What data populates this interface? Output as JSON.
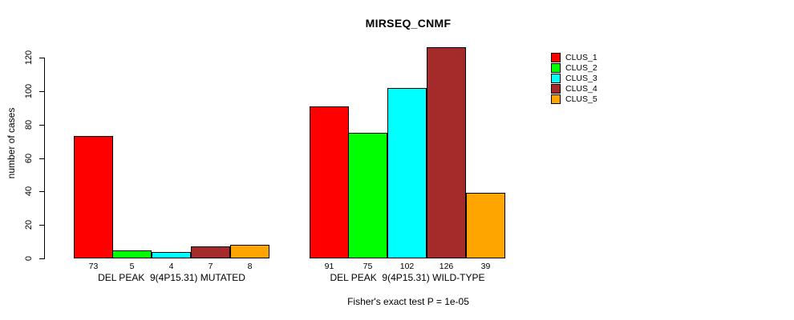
{
  "chart_data": {
    "type": "bar",
    "title": "MIRSEQ_CNMF",
    "ylabel": "number of cases",
    "ylim": [
      0,
      120
    ],
    "yticks": [
      0,
      20,
      40,
      60,
      80,
      100,
      120
    ],
    "grid": false,
    "legend_position": "right",
    "clusters": [
      {
        "name": "CLUS_1",
        "color": "#FF0000"
      },
      {
        "name": "CLUS_2",
        "color": "#00FF00"
      },
      {
        "name": "CLUS_3",
        "color": "#00FFFF"
      },
      {
        "name": "CLUS_4",
        "color": "#A52A2A"
      },
      {
        "name": "CLUS_5",
        "color": "#FFA500"
      }
    ],
    "groups": [
      {
        "label": "DEL PEAK  9(4P15.31) MUTATED",
        "values": [
          73,
          5,
          4,
          7,
          8
        ]
      },
      {
        "label": "DEL PEAK  9(4P15.31) WILD-TYPE",
        "values": [
          91,
          75,
          102,
          126,
          39
        ]
      }
    ],
    "footnote": "Fisher's exact test P = 1e-05"
  }
}
